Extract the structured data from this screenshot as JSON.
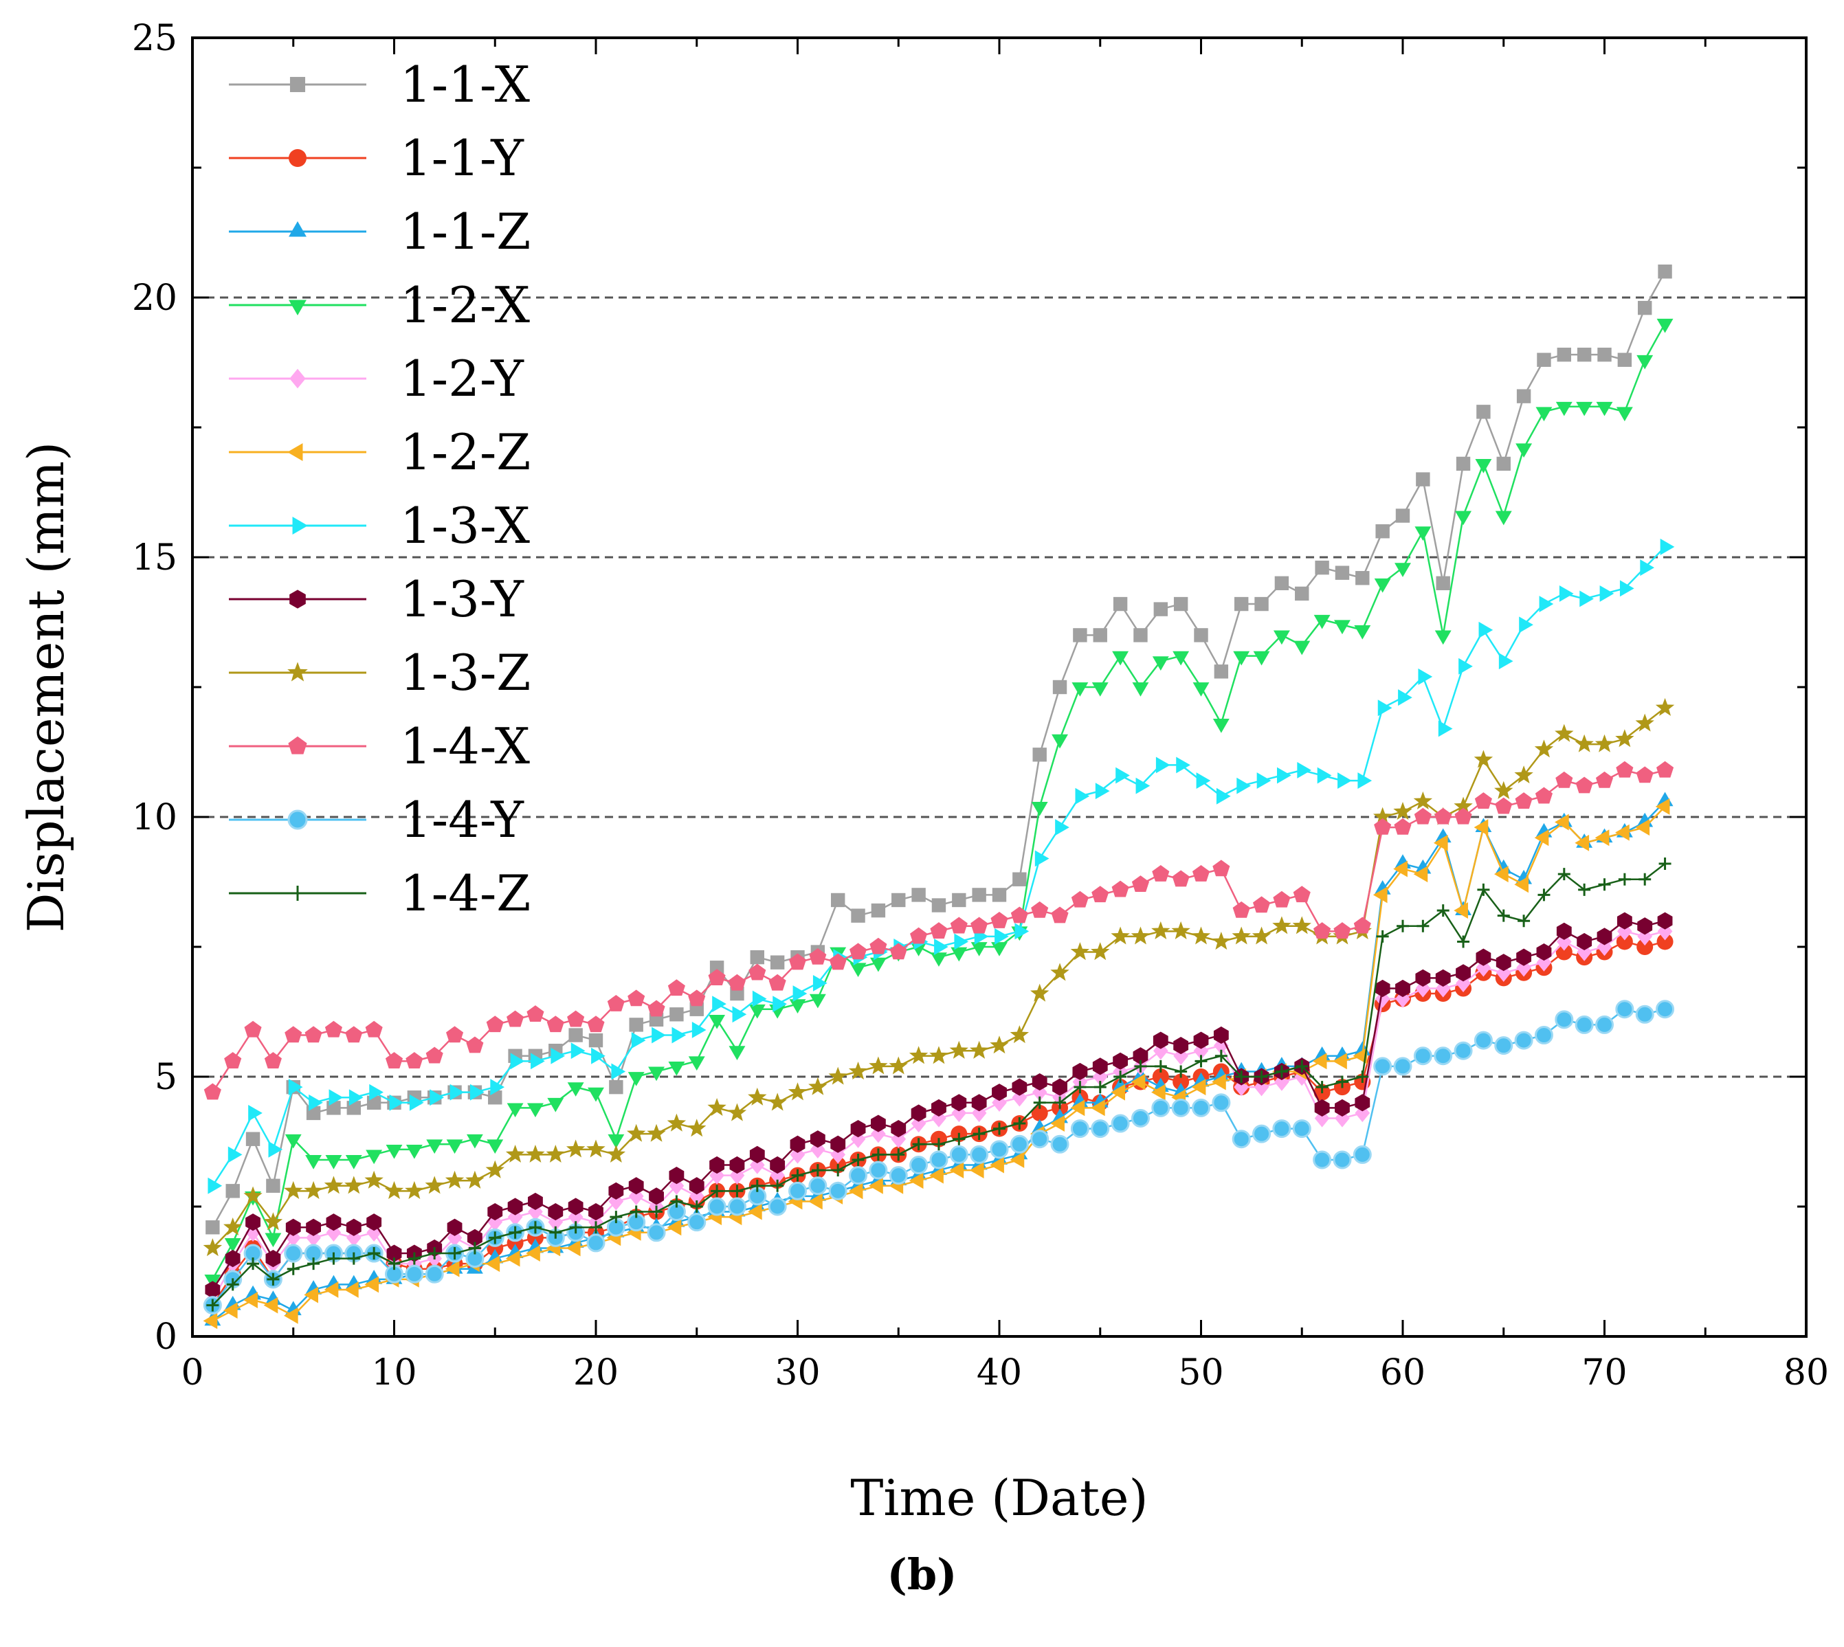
{
  "caption": "(b)",
  "chart_data": {
    "type": "line",
    "title": "",
    "xlabel": "Time (Date)",
    "ylabel": "Displacement (mm)",
    "xlim": [
      0,
      80
    ],
    "ylim": [
      0,
      25
    ],
    "xticks": [
      0,
      10,
      20,
      30,
      40,
      50,
      60,
      70,
      80
    ],
    "yticks": [
      0,
      5,
      10,
      15,
      20,
      25
    ],
    "reference_lines_y": [
      5,
      10,
      15,
      20
    ],
    "legend_position": "upper-left",
    "x": [
      1,
      2,
      3,
      4,
      5,
      6,
      7,
      8,
      9,
      10,
      11,
      12,
      13,
      14,
      15,
      16,
      17,
      18,
      19,
      20,
      21,
      22,
      23,
      24,
      25,
      26,
      27,
      28,
      29,
      30,
      31,
      32,
      33,
      34,
      35,
      36,
      37,
      38,
      39,
      40,
      41,
      42,
      43,
      44,
      45,
      46,
      47,
      48,
      49,
      50,
      51,
      52,
      53,
      54,
      55,
      56,
      57,
      58,
      59,
      60,
      61,
      62,
      63,
      64,
      65,
      66,
      67,
      68,
      69,
      70,
      71,
      72,
      73
    ],
    "series": [
      {
        "name": "1-1-X",
        "color": "#a0a0a0",
        "marker": "square",
        "values": [
          2.1,
          2.8,
          3.8,
          2.9,
          4.8,
          4.3,
          4.4,
          4.4,
          4.5,
          4.5,
          4.6,
          4.6,
          4.7,
          4.7,
          4.6,
          5.4,
          5.4,
          5.5,
          5.8,
          5.7,
          4.8,
          6.0,
          6.1,
          6.2,
          6.3,
          7.1,
          6.6,
          7.3,
          7.2,
          7.3,
          7.4,
          8.4,
          8.1,
          8.2,
          8.4,
          8.5,
          8.3,
          8.4,
          8.5,
          8.5,
          8.8,
          11.2,
          12.5,
          13.5,
          13.5,
          14.1,
          13.5,
          14.0,
          14.1,
          13.5,
          12.8,
          14.1,
          14.1,
          14.5,
          14.3,
          14.8,
          14.7,
          14.6,
          15.5,
          15.8,
          16.5,
          14.5,
          16.8,
          17.8,
          16.8,
          18.1,
          18.8,
          18.9,
          18.9,
          18.9,
          18.8,
          19.8,
          20.5
        ]
      },
      {
        "name": "1-1-Y",
        "color": "#f04020",
        "marker": "circle",
        "values": [
          0.6,
          1.2,
          1.7,
          1.1,
          1.6,
          1.6,
          1.6,
          1.6,
          1.6,
          1.4,
          1.3,
          1.3,
          1.4,
          1.4,
          1.7,
          1.8,
          1.9,
          1.9,
          2.0,
          2.0,
          2.1,
          2.3,
          2.4,
          2.5,
          2.6,
          2.8,
          2.8,
          2.9,
          3.0,
          3.1,
          3.2,
          3.3,
          3.4,
          3.5,
          3.5,
          3.7,
          3.8,
          3.9,
          3.9,
          4.0,
          4.1,
          4.3,
          4.4,
          4.6,
          4.5,
          4.8,
          4.9,
          5.0,
          4.9,
          5.0,
          5.1,
          4.8,
          4.9,
          5.0,
          5.1,
          4.7,
          4.8,
          4.9,
          6.4,
          6.5,
          6.6,
          6.6,
          6.7,
          7.0,
          6.9,
          7.0,
          7.1,
          7.4,
          7.3,
          7.4,
          7.6,
          7.5,
          7.6
        ]
      },
      {
        "name": "1-1-Z",
        "color": "#20a8e8",
        "marker": "triangle-up",
        "values": [
          0.3,
          0.6,
          0.8,
          0.7,
          0.5,
          0.9,
          1.0,
          1.0,
          1.1,
          1.1,
          1.2,
          1.2,
          1.3,
          1.3,
          1.5,
          1.6,
          1.7,
          1.7,
          1.8,
          1.9,
          2.0,
          2.1,
          2.1,
          2.2,
          2.3,
          2.4,
          2.4,
          2.5,
          2.6,
          2.7,
          2.7,
          2.8,
          2.9,
          3.0,
          3.0,
          3.1,
          3.2,
          3.3,
          3.3,
          3.4,
          3.5,
          4.0,
          4.2,
          4.5,
          4.5,
          4.8,
          5.0,
          4.8,
          4.7,
          4.9,
          5.0,
          5.1,
          5.1,
          5.2,
          5.2,
          5.4,
          5.4,
          5.5,
          8.6,
          9.1,
          9.0,
          9.6,
          8.2,
          9.8,
          9.0,
          8.8,
          9.7,
          9.9,
          9.5,
          9.6,
          9.7,
          9.9,
          10.3
        ]
      },
      {
        "name": "1-2-X",
        "color": "#20e060",
        "marker": "triangle-down",
        "values": [
          1.1,
          1.8,
          2.7,
          1.9,
          3.8,
          3.4,
          3.4,
          3.4,
          3.5,
          3.6,
          3.6,
          3.7,
          3.7,
          3.8,
          3.7,
          4.4,
          4.4,
          4.5,
          4.8,
          4.7,
          3.8,
          5.0,
          5.1,
          5.2,
          5.3,
          6.1,
          5.5,
          6.3,
          6.3,
          6.4,
          6.5,
          7.4,
          7.1,
          7.2,
          7.4,
          7.5,
          7.3,
          7.4,
          7.5,
          7.5,
          7.8,
          10.2,
          11.5,
          12.5,
          12.5,
          13.1,
          12.5,
          13.0,
          13.1,
          12.5,
          11.8,
          13.1,
          13.1,
          13.5,
          13.3,
          13.8,
          13.7,
          13.6,
          14.5,
          14.8,
          15.5,
          13.5,
          15.8,
          16.8,
          15.8,
          17.1,
          17.8,
          17.9,
          17.9,
          17.9,
          17.8,
          18.8,
          19.5
        ]
      },
      {
        "name": "1-2-Y",
        "color": "#ffa8f0",
        "marker": "diamond",
        "values": [
          0.7,
          1.4,
          2.0,
          1.4,
          1.9,
          1.9,
          2.0,
          1.9,
          2.0,
          1.4,
          1.4,
          1.5,
          1.9,
          1.7,
          2.2,
          2.3,
          2.4,
          2.2,
          2.3,
          2.2,
          2.6,
          2.7,
          2.5,
          2.9,
          2.7,
          3.1,
          3.1,
          3.3,
          3.1,
          3.5,
          3.6,
          3.5,
          3.8,
          3.9,
          3.8,
          4.1,
          4.2,
          4.3,
          4.3,
          4.5,
          4.6,
          4.7,
          4.6,
          4.9,
          5.0,
          5.1,
          5.2,
          5.5,
          5.4,
          5.5,
          5.6,
          4.8,
          4.8,
          4.9,
          5.0,
          4.2,
          4.2,
          4.3,
          6.5,
          6.5,
          6.7,
          6.7,
          6.8,
          7.1,
          7.0,
          7.1,
          7.2,
          7.6,
          7.4,
          7.5,
          7.8,
          7.7,
          7.8
        ]
      },
      {
        "name": "1-2-Z",
        "color": "#f8b020",
        "marker": "triangle-left",
        "values": [
          0.3,
          0.5,
          0.7,
          0.6,
          0.4,
          0.8,
          0.9,
          0.9,
          1.0,
          1.1,
          1.1,
          1.2,
          1.3,
          1.4,
          1.4,
          1.5,
          1.6,
          1.7,
          1.7,
          1.8,
          1.9,
          2.0,
          2.0,
          2.1,
          2.2,
          2.3,
          2.3,
          2.4,
          2.5,
          2.6,
          2.6,
          2.7,
          2.8,
          2.9,
          2.9,
          3.0,
          3.1,
          3.2,
          3.2,
          3.3,
          3.4,
          3.9,
          4.1,
          4.4,
          4.4,
          4.7,
          4.9,
          4.7,
          4.6,
          4.8,
          4.9,
          5.0,
          5.0,
          5.1,
          5.1,
          5.3,
          5.3,
          5.4,
          8.5,
          9.0,
          8.9,
          9.5,
          8.2,
          9.8,
          8.9,
          8.7,
          9.6,
          9.9,
          9.5,
          9.6,
          9.7,
          9.8,
          10.2
        ]
      },
      {
        "name": "1-3-X",
        "color": "#20e8f8",
        "marker": "triangle-right",
        "values": [
          2.9,
          3.5,
          4.3,
          3.6,
          4.8,
          4.5,
          4.6,
          4.6,
          4.7,
          4.5,
          4.5,
          4.6,
          4.7,
          4.7,
          4.8,
          5.3,
          5.3,
          5.4,
          5.5,
          5.4,
          5.1,
          5.7,
          5.8,
          5.8,
          5.9,
          6.4,
          6.2,
          6.5,
          6.4,
          6.6,
          6.8,
          7.3,
          7.3,
          7.4,
          7.5,
          7.6,
          7.5,
          7.6,
          7.7,
          7.7,
          7.8,
          9.2,
          9.8,
          10.4,
          10.5,
          10.8,
          10.6,
          11.0,
          11.0,
          10.7,
          10.4,
          10.6,
          10.7,
          10.8,
          10.9,
          10.8,
          10.7,
          10.7,
          12.1,
          12.3,
          12.7,
          11.7,
          12.9,
          13.6,
          13.0,
          13.7,
          14.1,
          14.3,
          14.2,
          14.3,
          14.4,
          14.8,
          15.2
        ]
      },
      {
        "name": "1-3-Y",
        "color": "#780030",
        "marker": "hexagon",
        "values": [
          0.9,
          1.5,
          2.2,
          1.5,
          2.1,
          2.1,
          2.2,
          2.1,
          2.2,
          1.6,
          1.6,
          1.7,
          2.1,
          1.9,
          2.4,
          2.5,
          2.6,
          2.4,
          2.5,
          2.4,
          2.8,
          2.9,
          2.7,
          3.1,
          2.9,
          3.3,
          3.3,
          3.5,
          3.3,
          3.7,
          3.8,
          3.7,
          4.0,
          4.1,
          4.0,
          4.3,
          4.4,
          4.5,
          4.5,
          4.7,
          4.8,
          4.9,
          4.8,
          5.1,
          5.2,
          5.3,
          5.4,
          5.7,
          5.6,
          5.7,
          5.8,
          5.0,
          5.0,
          5.1,
          5.2,
          4.4,
          4.4,
          4.5,
          6.7,
          6.7,
          6.9,
          6.9,
          7.0,
          7.3,
          7.2,
          7.3,
          7.4,
          7.8,
          7.6,
          7.7,
          8.0,
          7.9,
          8.0
        ]
      },
      {
        "name": "1-3-Z",
        "color": "#b09818",
        "marker": "star",
        "values": [
          1.7,
          2.1,
          2.7,
          2.2,
          2.8,
          2.8,
          2.9,
          2.9,
          3.0,
          2.8,
          2.8,
          2.9,
          3.0,
          3.0,
          3.2,
          3.5,
          3.5,
          3.5,
          3.6,
          3.6,
          3.5,
          3.9,
          3.9,
          4.1,
          4.0,
          4.4,
          4.3,
          4.6,
          4.5,
          4.7,
          4.8,
          5.0,
          5.1,
          5.2,
          5.2,
          5.4,
          5.4,
          5.5,
          5.5,
          5.6,
          5.8,
          6.6,
          7.0,
          7.4,
          7.4,
          7.7,
          7.7,
          7.8,
          7.8,
          7.7,
          7.6,
          7.7,
          7.7,
          7.9,
          7.9,
          7.7,
          7.7,
          7.8,
          10.0,
          10.1,
          10.3,
          10.0,
          10.2,
          11.1,
          10.5,
          10.8,
          11.3,
          11.6,
          11.4,
          11.4,
          11.5,
          11.8,
          12.1
        ]
      },
      {
        "name": "1-4-X",
        "color": "#f06080",
        "marker": "pentagon",
        "values": [
          4.7,
          5.3,
          5.9,
          5.3,
          5.8,
          5.8,
          5.9,
          5.8,
          5.9,
          5.3,
          5.3,
          5.4,
          5.8,
          5.6,
          6.0,
          6.1,
          6.2,
          6.0,
          6.1,
          6.0,
          6.4,
          6.5,
          6.3,
          6.7,
          6.5,
          6.9,
          6.8,
          7.0,
          6.8,
          7.2,
          7.3,
          7.2,
          7.4,
          7.5,
          7.4,
          7.7,
          7.8,
          7.9,
          7.9,
          8.0,
          8.1,
          8.2,
          8.1,
          8.4,
          8.5,
          8.6,
          8.7,
          8.9,
          8.8,
          8.9,
          9.0,
          8.2,
          8.3,
          8.4,
          8.5,
          7.8,
          7.8,
          7.9,
          9.8,
          9.8,
          10.0,
          10.0,
          10.0,
          10.3,
          10.2,
          10.3,
          10.4,
          10.7,
          10.6,
          10.7,
          10.9,
          10.8,
          10.9
        ]
      },
      {
        "name": "1-4-Y",
        "color": "#50c0f0",
        "marker": "ball",
        "values": [
          0.6,
          1.1,
          1.6,
          1.1,
          1.6,
          1.6,
          1.6,
          1.6,
          1.6,
          1.2,
          1.2,
          1.2,
          1.6,
          1.5,
          1.9,
          2.0,
          2.1,
          1.9,
          2.0,
          1.8,
          2.1,
          2.2,
          2.0,
          2.4,
          2.2,
          2.5,
          2.5,
          2.7,
          2.5,
          2.8,
          2.9,
          2.8,
          3.1,
          3.2,
          3.1,
          3.3,
          3.4,
          3.5,
          3.5,
          3.6,
          3.7,
          3.8,
          3.7,
          4.0,
          4.0,
          4.1,
          4.2,
          4.4,
          4.4,
          4.4,
          4.5,
          3.8,
          3.9,
          4.0,
          4.0,
          3.4,
          3.4,
          3.5,
          5.2,
          5.2,
          5.4,
          5.4,
          5.5,
          5.7,
          5.6,
          5.7,
          5.8,
          6.1,
          6.0,
          6.0,
          6.3,
          6.2,
          6.3
        ]
      },
      {
        "name": "1-4-Z",
        "color": "#186018",
        "marker": "plus",
        "values": [
          0.6,
          1.0,
          1.4,
          1.1,
          1.3,
          1.4,
          1.5,
          1.5,
          1.6,
          1.4,
          1.5,
          1.6,
          1.6,
          1.7,
          1.9,
          2.0,
          2.1,
          2.0,
          2.1,
          2.1,
          2.3,
          2.4,
          2.4,
          2.6,
          2.5,
          2.8,
          2.8,
          2.9,
          2.9,
          3.1,
          3.2,
          3.2,
          3.4,
          3.5,
          3.5,
          3.7,
          3.7,
          3.8,
          3.9,
          4.0,
          4.1,
          4.5,
          4.5,
          4.8,
          4.8,
          5.0,
          5.2,
          5.2,
          5.1,
          5.3,
          5.4,
          5.0,
          5.0,
          5.1,
          5.2,
          4.8,
          4.9,
          5.0,
          7.7,
          7.9,
          7.9,
          8.2,
          7.6,
          8.6,
          8.1,
          8.0,
          8.5,
          8.9,
          8.6,
          8.7,
          8.8,
          8.8,
          9.1
        ]
      }
    ]
  }
}
